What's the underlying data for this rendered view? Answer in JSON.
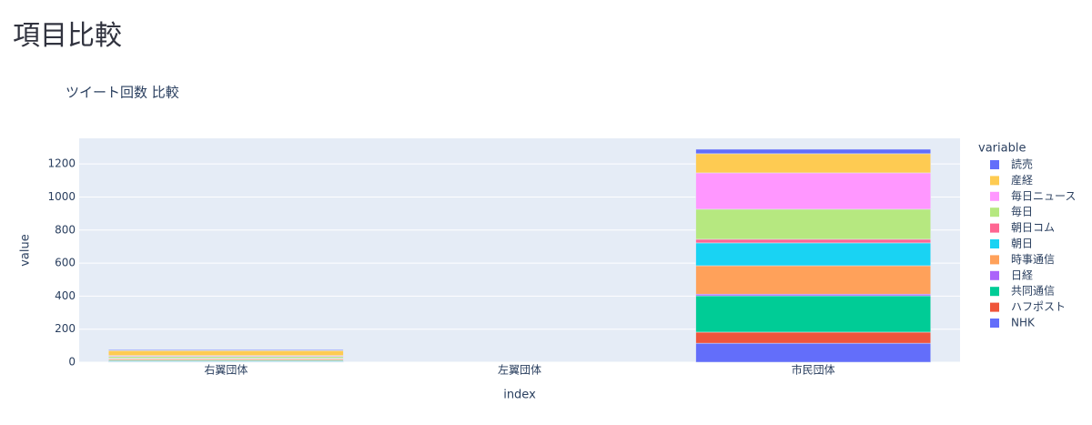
{
  "page_title": "項目比較",
  "chart_data": {
    "type": "bar",
    "stacked": true,
    "title": "ツイート回数 比較",
    "x_label": "index",
    "y_label": "value",
    "legend_title": "variable",
    "categories": [
      "右翼団体",
      "左翼団体",
      "市民団体"
    ],
    "series": [
      {
        "name": "NHK",
        "color": "#636efa",
        "values": [
          3,
          0,
          115
        ]
      },
      {
        "name": "ハフポスト",
        "color": "#EF553B",
        "values": [
          2,
          0,
          67
        ]
      },
      {
        "name": "共同通信",
        "color": "#00cc96",
        "values": [
          5,
          0,
          220
        ]
      },
      {
        "name": "日経",
        "color": "#ab63fa",
        "values": [
          2,
          0,
          10
        ]
      },
      {
        "name": "時事通信",
        "color": "#FFA15A",
        "values": [
          8,
          0,
          172
        ]
      },
      {
        "name": "朝日",
        "color": "#19d3f3",
        "values": [
          3,
          0,
          138
        ]
      },
      {
        "name": "朝日コム",
        "color": "#FF6692",
        "values": [
          2,
          0,
          22
        ]
      },
      {
        "name": "毎日",
        "color": "#B6E880",
        "values": [
          10,
          0,
          182
        ]
      },
      {
        "name": "毎日ニュース",
        "color": "#FF97FF",
        "values": [
          5,
          0,
          220
        ]
      },
      {
        "name": "産経",
        "color": "#FECB52",
        "values": [
          30,
          0,
          116
        ]
      },
      {
        "name": "読売",
        "color": "#636efa",
        "values": [
          5,
          0,
          27
        ]
      }
    ],
    "ylim": [
      0,
      1355
    ],
    "yticks": [
      0,
      200,
      400,
      600,
      800,
      1000,
      1200
    ],
    "grid": true
  }
}
